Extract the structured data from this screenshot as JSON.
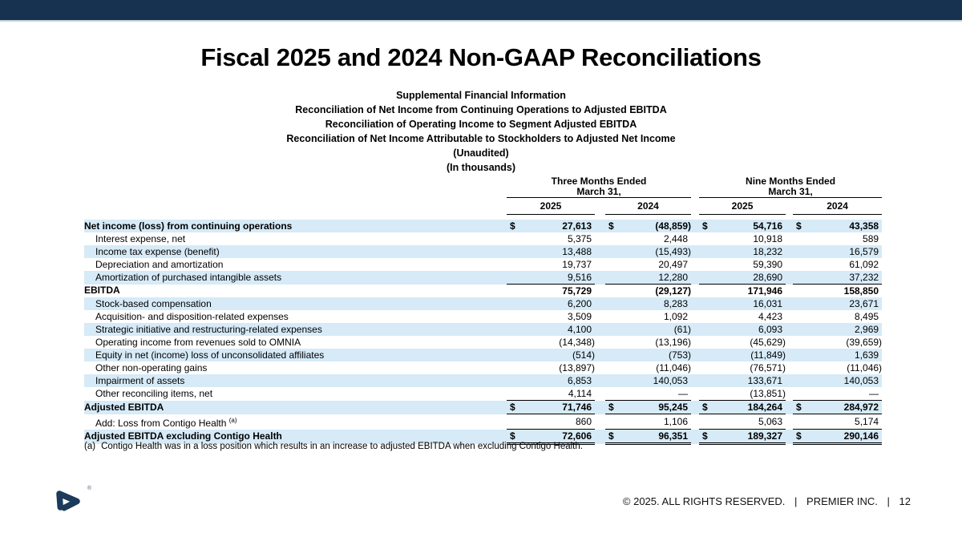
{
  "title": "Fiscal 2025 and 2024 Non-GAAP Reconciliations",
  "subtitles": [
    "Supplemental Financial Information",
    "Reconciliation of Net Income from Continuing Operations to Adjusted EBITDA",
    "Reconciliation of Operating Income to Segment Adjusted EBITDA",
    "Reconciliation of Net Income Attributable to Stockholders to Adjusted Net Income",
    "(Unaudited)",
    "(In thousands)"
  ],
  "table": {
    "dollar_sign": "$",
    "col_groups": [
      {
        "line1": "Three Months Ended",
        "line2": "March 31,"
      },
      {
        "line1": "Nine Months Ended",
        "line2": "March 31,"
      }
    ],
    "years": [
      "2025",
      "2024",
      "2025",
      "2024"
    ],
    "rows": [
      {
        "label": "Net income (loss) from continuing operations",
        "indent": false,
        "bold": true,
        "shaded": true,
        "dollar": true,
        "border": "none",
        "values": [
          "27,613",
          "(48,859)",
          "54,716",
          "43,358"
        ]
      },
      {
        "label": "Interest expense, net",
        "indent": true,
        "bold": false,
        "shaded": false,
        "dollar": false,
        "border": "none",
        "values": [
          "5,375",
          "2,448",
          "10,918",
          "589"
        ]
      },
      {
        "label": "Income tax expense (benefit)",
        "indent": true,
        "bold": false,
        "shaded": true,
        "dollar": false,
        "border": "none",
        "values": [
          "13,488",
          "(15,493)",
          "18,232",
          "16,579"
        ]
      },
      {
        "label": "Depreciation and amortization",
        "indent": true,
        "bold": false,
        "shaded": false,
        "dollar": false,
        "border": "none",
        "values": [
          "19,737",
          "20,497",
          "59,390",
          "61,092"
        ]
      },
      {
        "label": "Amortization of purchased intangible assets",
        "indent": true,
        "bold": false,
        "shaded": true,
        "dollar": false,
        "border": "single",
        "values": [
          "9,516",
          "12,280",
          "28,690",
          "37,232"
        ]
      },
      {
        "label": "EBITDA",
        "indent": false,
        "bold": true,
        "shaded": false,
        "dollar": false,
        "border": "none",
        "values": [
          "75,729",
          "(29,127)",
          "171,946",
          "158,850"
        ]
      },
      {
        "label": "Stock-based compensation",
        "indent": true,
        "bold": false,
        "shaded": true,
        "dollar": false,
        "border": "none",
        "values": [
          "6,200",
          "8,283",
          "16,031",
          "23,671"
        ]
      },
      {
        "label": "Acquisition- and disposition-related expenses",
        "indent": true,
        "bold": false,
        "shaded": false,
        "dollar": false,
        "border": "none",
        "values": [
          "3,509",
          "1,092",
          "4,423",
          "8,495"
        ]
      },
      {
        "label": "Strategic initiative and restructuring-related expenses",
        "indent": true,
        "bold": false,
        "shaded": true,
        "dollar": false,
        "border": "none",
        "values": [
          "4,100",
          "(61)",
          "6,093",
          "2,969"
        ]
      },
      {
        "label": "Operating income from revenues sold to OMNIA",
        "indent": true,
        "bold": false,
        "shaded": false,
        "dollar": false,
        "border": "none",
        "values": [
          "(14,348)",
          "(13,196)",
          "(45,629)",
          "(39,659)"
        ]
      },
      {
        "label": "Equity in net (income) loss of unconsolidated affiliates",
        "indent": true,
        "bold": false,
        "shaded": true,
        "dollar": false,
        "border": "none",
        "values": [
          "(514)",
          "(753)",
          "(11,849)",
          "1,639"
        ]
      },
      {
        "label": "Other non-operating gains",
        "indent": true,
        "bold": false,
        "shaded": false,
        "dollar": false,
        "border": "none",
        "values": [
          "(13,897)",
          "(11,046)",
          "(76,571)",
          "(11,046)"
        ]
      },
      {
        "label": "Impairment of assets",
        "indent": true,
        "bold": false,
        "shaded": true,
        "dollar": false,
        "border": "none",
        "values": [
          "6,853",
          "140,053",
          "133,671",
          "140,053"
        ]
      },
      {
        "label": "Other reconciling items, net",
        "indent": true,
        "bold": false,
        "shaded": false,
        "dollar": false,
        "border": "single",
        "values": [
          "4,114",
          "—",
          "(13,851)",
          "—"
        ]
      },
      {
        "label": "Adjusted EBITDA",
        "indent": false,
        "bold": true,
        "shaded": true,
        "dollar": true,
        "border": "single",
        "values": [
          "71,746",
          "95,245",
          "184,264",
          "284,972"
        ]
      },
      {
        "label": "Add: Loss from Contigo Health ",
        "sup": "(a)",
        "indent": true,
        "bold": false,
        "shaded": false,
        "dollar": false,
        "border": "single",
        "values": [
          "860",
          "1,106",
          "5,063",
          "5,174"
        ]
      },
      {
        "label": "Adjusted EBITDA excluding Contigo Health",
        "indent": false,
        "bold": true,
        "shaded": true,
        "dollar": true,
        "border": "double",
        "values": [
          "72,606",
          "96,351",
          "189,327",
          "290,146"
        ]
      }
    ]
  },
  "footnote": {
    "marker": "(a)",
    "text": "Contigo Health was in a loss position which results in an increase to adjusted EBITDA when excluding Contigo Health."
  },
  "logo": {
    "reg_mark": "®"
  },
  "footer": {
    "copyright": "© 2025. ALL RIGHTS RESERVED.",
    "separator": "|",
    "company": "PREMIER INC.",
    "page": "12"
  },
  "colors": {
    "top_bar": "#163250",
    "row_band": "#d6eaf7",
    "logo_navy": "#1c3a5a"
  }
}
